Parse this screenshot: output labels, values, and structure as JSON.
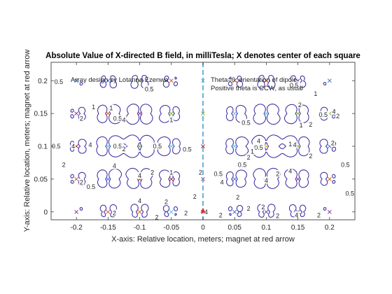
{
  "chart_data": {
    "type": "contour",
    "title": "Absolute Value of X-directed B field, in milliTesla;  X denotes center of each square",
    "xlabel": "X-axis: Relative location, meters;  magnet at red arrow",
    "ylabel": "Y-axis: Relative location, meters;  magnet at red arrow",
    "xlim": [
      -0.24,
      0.24
    ],
    "ylim": [
      -0.012,
      0.228
    ],
    "x_ticks": [
      -0.2,
      -0.15,
      -0.1,
      -0.05,
      0,
      0.05,
      0.1,
      0.15,
      0.2
    ],
    "x_tick_labels": [
      "-0.2",
      "-0.15",
      "-0.1",
      "-0.05",
      "0",
      "0.05",
      "0.1",
      "0.15",
      "0.2"
    ],
    "y_ticks": [
      0,
      0.05,
      0.1,
      0.15,
      0.2
    ],
    "y_tick_labels": [
      "0",
      "0.05",
      "0.1",
      "0.15",
      "0.2"
    ],
    "grid": false,
    "annotations": {
      "left": "Array design by Lotanna Ezenwa",
      "right_line1": "Theta=0: orientation of dipole",
      "right_line2": "Positive theta is CCW, as usual"
    },
    "contour_levels": [
      0.5,
      1,
      2,
      4
    ],
    "contour_colors": {
      "0.5": "#3b2fa0",
      "1": "#2c6fd6",
      "2": "#19b3a8",
      "4": "#f2e80c"
    },
    "contour_labels": [
      {
        "x": -0.228,
        "y": 0.198,
        "text": "0.5"
      },
      {
        "x": -0.173,
        "y": 0.16,
        "text": "1"
      },
      {
        "x": -0.192,
        "y": 0.142,
        "text": "2"
      },
      {
        "x": -0.232,
        "y": 0.1,
        "text": "0.5"
      },
      {
        "x": -0.205,
        "y": 0.1,
        "text": "4"
      },
      {
        "x": -0.178,
        "y": 0.102,
        "text": "4"
      },
      {
        "x": -0.22,
        "y": 0.072,
        "text": "2"
      },
      {
        "x": -0.192,
        "y": 0.045,
        "text": "2"
      },
      {
        "x": -0.177,
        "y": 0.038,
        "text": "0.5"
      },
      {
        "x": -0.135,
        "y": 0.142,
        "text": "0.5"
      },
      {
        "x": -0.125,
        "y": 0.14,
        "text": "4"
      },
      {
        "x": -0.145,
        "y": 0.158,
        "text": "1"
      },
      {
        "x": -0.085,
        "y": 0.187,
        "text": "0.5"
      },
      {
        "x": -0.05,
        "y": 0.14,
        "text": "1"
      },
      {
        "x": -0.135,
        "y": 0.1,
        "text": "0.5"
      },
      {
        "x": -0.125,
        "y": 0.096,
        "text": "2"
      },
      {
        "x": -0.14,
        "y": 0.07,
        "text": "4"
      },
      {
        "x": -0.1,
        "y": 0.055,
        "text": "4"
      },
      {
        "x": -0.08,
        "y": 0.06,
        "text": "2"
      },
      {
        "x": -0.025,
        "y": 0.095,
        "text": "0.5"
      },
      {
        "x": -0.1,
        "y": 0.017,
        "text": "4"
      },
      {
        "x": -0.058,
        "y": 0.015,
        "text": "2"
      },
      {
        "x": -0.14,
        "y": -0.002,
        "text": "2"
      },
      {
        "x": -0.073,
        "y": -0.008,
        "text": "2"
      },
      {
        "x": -0.027,
        "y": -0.002,
        "text": "2"
      },
      {
        "x": -0.013,
        "y": 0.023,
        "text": "2"
      },
      {
        "x": -0.004,
        "y": 0.06,
        "text": "2"
      },
      {
        "x": 0.024,
        "y": 0.058,
        "text": "0.5"
      },
      {
        "x": 0.03,
        "y": 0.045,
        "text": "4"
      },
      {
        "x": 0.005,
        "y": 0.0,
        "text": "4"
      },
      {
        "x": 0.028,
        "y": -0.005,
        "text": "2"
      },
      {
        "x": 0.055,
        "y": 0.022,
        "text": "2"
      },
      {
        "x": 0.072,
        "y": 0.005,
        "text": "2"
      },
      {
        "x": 0.095,
        "y": 0.007,
        "text": "2"
      },
      {
        "x": 0.118,
        "y": -0.006,
        "text": "2"
      },
      {
        "x": 0.148,
        "y": -0.005,
        "text": "4"
      },
      {
        "x": 0.183,
        "y": -0.005,
        "text": "2"
      },
      {
        "x": 0.1,
        "y": 0.048,
        "text": "4"
      },
      {
        "x": 0.072,
        "y": 0.083,
        "text": "2"
      },
      {
        "x": 0.088,
        "y": 0.098,
        "text": "0.5"
      },
      {
        "x": 0.088,
        "y": 0.108,
        "text": "4"
      },
      {
        "x": 0.118,
        "y": 0.058,
        "text": "2"
      },
      {
        "x": 0.138,
        "y": 0.062,
        "text": "4"
      },
      {
        "x": 0.145,
        "y": 0.102,
        "text": "4"
      },
      {
        "x": 0.17,
        "y": 0.085,
        "text": "2"
      },
      {
        "x": 0.155,
        "y": 0.132,
        "text": "1"
      },
      {
        "x": 0.17,
        "y": 0.133,
        "text": "2"
      },
      {
        "x": 0.19,
        "y": 0.148,
        "text": "0.5"
      },
      {
        "x": 0.207,
        "y": 0.153,
        "text": "4"
      },
      {
        "x": 0.213,
        "y": 0.146,
        "text": "2"
      },
      {
        "x": 0.205,
        "y": 0.105,
        "text": "2"
      },
      {
        "x": 0.225,
        "y": 0.072,
        "text": "0.5"
      },
      {
        "x": 0.178,
        "y": 0.18,
        "text": "1"
      },
      {
        "x": 0.144,
        "y": 0.193,
        "text": "0.5"
      },
      {
        "x": 0.153,
        "y": 0.163,
        "text": "2"
      },
      {
        "x": 0.232,
        "y": 0.028,
        "text": "0.5"
      },
      {
        "x": 0.068,
        "y": 0.136,
        "text": "0.5"
      },
      {
        "x": 0.078,
        "y": 0.092,
        "text": "1"
      },
      {
        "x": 0.062,
        "y": 0.072,
        "text": "0.5"
      },
      {
        "x": -0.072,
        "y": 0.1,
        "text": "0.5"
      },
      {
        "x": -0.05,
        "y": 0.06,
        "text": "1"
      },
      {
        "x": 0.138,
        "y": 0.103,
        "text": "1"
      }
    ],
    "square_centers": {
      "points": [
        {
          "x": -0.2,
          "y": 0.2,
          "c": "#2c6fd6"
        },
        {
          "x": -0.15,
          "y": 0.2,
          "c": "#2c6fd6"
        },
        {
          "x": -0.1,
          "y": 0.2,
          "c": "#77ac30"
        },
        {
          "x": -0.05,
          "y": 0.2,
          "c": "#d95319"
        },
        {
          "x": 0.0,
          "y": 0.2,
          "c": "#4dbeee"
        },
        {
          "x": 0.05,
          "y": 0.2,
          "c": "#d95319"
        },
        {
          "x": 0.1,
          "y": 0.2,
          "c": "#d95319"
        },
        {
          "x": 0.15,
          "y": 0.2,
          "c": "#7e2f8e"
        },
        {
          "x": 0.2,
          "y": 0.2,
          "c": "#2c6fd6"
        },
        {
          "x": -0.2,
          "y": 0.15,
          "c": "#7e2f8e"
        },
        {
          "x": -0.15,
          "y": 0.15,
          "c": "#d95319"
        },
        {
          "x": -0.1,
          "y": 0.15,
          "c": "#7e2f8e"
        },
        {
          "x": -0.05,
          "y": 0.15,
          "c": "#77ac30"
        },
        {
          "x": 0.0,
          "y": 0.15,
          "c": "#77ac30"
        },
        {
          "x": 0.05,
          "y": 0.15,
          "c": "#4dbeee"
        },
        {
          "x": 0.1,
          "y": 0.15,
          "c": "#4dbeee"
        },
        {
          "x": 0.15,
          "y": 0.15,
          "c": "#77ac30"
        },
        {
          "x": 0.2,
          "y": 0.15,
          "c": "#77ac30"
        },
        {
          "x": -0.2,
          "y": 0.1,
          "c": "#a2142f"
        },
        {
          "x": -0.15,
          "y": 0.1,
          "c": "#4dbeee"
        },
        {
          "x": -0.1,
          "y": 0.1,
          "c": "#77ac30"
        },
        {
          "x": -0.05,
          "y": 0.1,
          "c": "#4dbeee"
        },
        {
          "x": 0.0,
          "y": 0.1,
          "c": "#a2142f"
        },
        {
          "x": 0.05,
          "y": 0.1,
          "c": "#4dbeee"
        },
        {
          "x": 0.1,
          "y": 0.1,
          "c": "#edb120"
        },
        {
          "x": 0.15,
          "y": 0.1,
          "c": "#77ac30"
        },
        {
          "x": 0.2,
          "y": 0.1,
          "c": "#2c6fd6"
        },
        {
          "x": -0.2,
          "y": 0.05,
          "c": "#d95319"
        },
        {
          "x": -0.15,
          "y": 0.05,
          "c": "#2c6fd6"
        },
        {
          "x": -0.1,
          "y": 0.05,
          "c": "#a2142f"
        },
        {
          "x": -0.05,
          "y": 0.05,
          "c": "#a2142f"
        },
        {
          "x": 0.0,
          "y": 0.05,
          "c": "#7e2f8e"
        },
        {
          "x": 0.05,
          "y": 0.05,
          "c": "#2c6fd6"
        },
        {
          "x": 0.1,
          "y": 0.05,
          "c": "#edb120"
        },
        {
          "x": 0.15,
          "y": 0.05,
          "c": "#7e2f8e"
        },
        {
          "x": 0.2,
          "y": 0.05,
          "c": "#d95319"
        },
        {
          "x": -0.2,
          "y": 0.0,
          "c": "#7e2f8e"
        },
        {
          "x": -0.15,
          "y": 0.0,
          "c": "#d95319"
        },
        {
          "x": -0.1,
          "y": 0.0,
          "c": "#d95319"
        },
        {
          "x": -0.05,
          "y": 0.0,
          "c": "#4dbeee"
        },
        {
          "x": 0.0,
          "y": 0.0,
          "c": "#a2142f"
        },
        {
          "x": 0.05,
          "y": 0.0,
          "c": "#2c6fd6"
        },
        {
          "x": 0.1,
          "y": 0.0,
          "c": "#7e2f8e"
        },
        {
          "x": 0.15,
          "y": 0.0,
          "c": "#7e2f8e"
        },
        {
          "x": 0.2,
          "y": 0.0,
          "c": "#7e2f8e"
        }
      ]
    },
    "magnet_marker": {
      "x": 0.0,
      "y": 0.0,
      "color": "#e03030"
    },
    "reference_line": {
      "x": 0.0,
      "color": "#4a9fd4",
      "style": "dashed"
    }
  }
}
